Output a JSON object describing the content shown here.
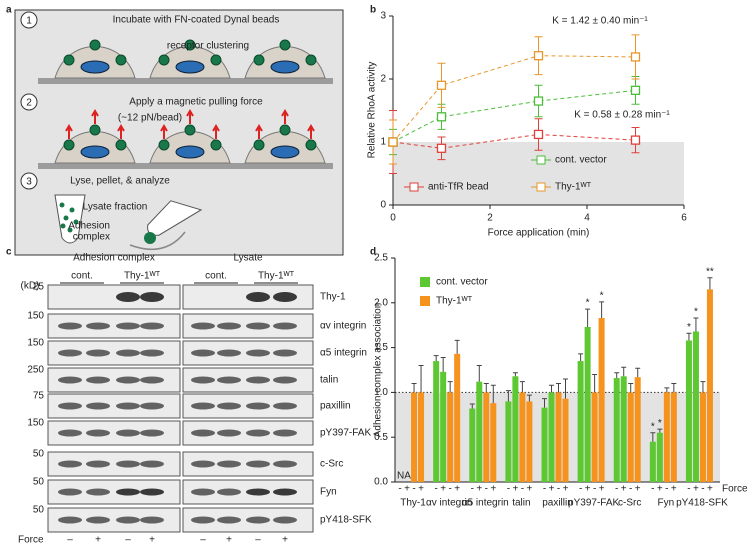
{
  "panel_labels": [
    "a",
    "b",
    "c",
    "d"
  ],
  "panel_a": {
    "steps": [
      {
        "number": "1",
        "text": "Incubate with FN-coated Dynal beads"
      },
      {
        "number": "2",
        "text": "Apply a magnetic pulling force"
      },
      {
        "number": "3",
        "text": "Lyse, pellet, & analyze"
      }
    ],
    "receptor_note": "receptor clustering",
    "force_note": "(~12 pN/bead)",
    "lysate_note": "Lysate fraction",
    "pellet_note": [
      "Adhesion",
      "complex"
    ]
  },
  "panel_c": {
    "groups": [
      "Adhesion complex",
      "Lysate"
    ],
    "conditions": [
      "cont.",
      "Thy-1ᵂᵀ",
      "cont.",
      "Thy-1ᵂᵀ"
    ],
    "unit": "(kD)",
    "rows": [
      {
        "protein": "Thy-1",
        "kd": 25
      },
      {
        "protein": "αv integrin",
        "kd": 150
      },
      {
        "protein": "α5 integrin",
        "kd": 150
      },
      {
        "protein": "talin",
        "kd": 250
      },
      {
        "protein": "paxillin",
        "kd": 75
      },
      {
        "protein": "pY397-FAK",
        "kd": 150
      },
      {
        "protein": "c-Src",
        "kd": 50
      },
      {
        "protein": "Fyn",
        "kd": 50
      },
      {
        "protein": "pY418-SFK",
        "kd": 50
      }
    ],
    "force_label": "Force",
    "force_signs": [
      "–",
      "+",
      "–",
      "+",
      "–",
      "+",
      "–",
      "+"
    ]
  },
  "chart_data": [
    {
      "type": "line",
      "xlabel": "Force application (min)",
      "ylabel": "Relative RhoA activity",
      "x": [
        0,
        1,
        3,
        5
      ],
      "series": [
        {
          "name": "anti-TfR bead",
          "color": "#e0403a",
          "values": [
            1.0,
            0.9,
            1.12,
            1.03
          ],
          "errors": [
            0.5,
            0.18,
            0.25,
            0.2
          ]
        },
        {
          "name": "cont. vector",
          "color": "#4cbd3a",
          "values": [
            1.0,
            1.4,
            1.65,
            1.82
          ],
          "errors": [
            0.2,
            0.2,
            0.25,
            0.22
          ]
        },
        {
          "name": "Thy-1ᵂᵀ",
          "color": "#e8962a",
          "values": [
            1.0,
            1.9,
            2.37,
            2.35
          ],
          "errors": [
            0.35,
            0.35,
            0.3,
            0.35
          ]
        }
      ],
      "annotations": [
        {
          "text": "K = 1.42 ± 0.40 min⁻¹",
          "color": "#e8962a"
        },
        {
          "text": "K = 0.58 ± 0.28 min⁻¹",
          "color": "#4cbd3a"
        }
      ],
      "shaded_range": [
        0,
        1
      ],
      "xlim": [
        0,
        6
      ],
      "xticks": [
        0,
        2,
        4,
        6
      ],
      "ylim": [
        0,
        3
      ],
      "yticks": [
        0,
        1,
        2,
        3
      ]
    },
    {
      "type": "bar",
      "xlabel": "Force",
      "ylabel": "Adhesion complex association",
      "categories": [
        "Thy-1",
        "αv integrin",
        "α5 integrin",
        "talin",
        "paxillin",
        "pY397-FAK",
        "c-Src",
        "Fyn",
        "pY418-SFK"
      ],
      "force_signs": [
        "-",
        "+"
      ],
      "na_label": "NA",
      "series": [
        {
          "name": "cont. vector",
          "color": "#5ec832",
          "values": [
            null,
            1.35,
            0.82,
            0.9,
            0.83,
            1.35,
            1.16,
            0.45,
            1.58
          ],
          "errors": [
            null,
            0.06,
            0.05,
            0.12,
            0.1,
            0.08,
            0.06,
            0.1,
            0.08
          ],
          "values_force": [
            null,
            1.23,
            1.12,
            1.18,
            1.0,
            1.73,
            1.18,
            0.55,
            1.68
          ],
          "errors_force": [
            null,
            0.16,
            0.18,
            0.04,
            0.08,
            0.2,
            0.1,
            0.04,
            0.15
          ],
          "significance": [
            null,
            null,
            null,
            null,
            null,
            null,
            null,
            "*",
            "*"
          ],
          "significance_force": [
            null,
            null,
            null,
            null,
            null,
            "*",
            null,
            "*",
            "*"
          ]
        },
        {
          "name": "Thy-1ᵂᵀ",
          "color": "#f5931e",
          "values": [
            1.0,
            1.0,
            1.0,
            1.0,
            1.0,
            1.0,
            1.0,
            1.0,
            1.0
          ],
          "errors": [
            0.1,
            0.12,
            0.1,
            0.12,
            0.1,
            0.2,
            0.1,
            0.05,
            0.12
          ],
          "values_force": [
            1.0,
            1.43,
            0.88,
            0.9,
            0.93,
            1.83,
            1.17,
            1.0,
            2.15
          ],
          "errors_force": [
            0.3,
            0.15,
            0.2,
            0.07,
            0.22,
            0.18,
            0.1,
            0.1,
            0.13
          ],
          "significance": [
            null,
            null,
            null,
            null,
            null,
            null,
            null,
            null,
            null
          ],
          "significance_force": [
            null,
            null,
            null,
            null,
            null,
            "*",
            null,
            null,
            "**"
          ]
        }
      ],
      "reference_line": 1,
      "shaded_range": [
        0,
        1
      ],
      "ylim": [
        0,
        2.5
      ],
      "yticks": [
        {
          "value": 0,
          "label": "0.0"
        },
        {
          "value": 0.5,
          "label": "0.5"
        },
        {
          "value": 1,
          "label": "1.0"
        },
        {
          "value": 1.5,
          "label": "1.5"
        },
        {
          "value": 2,
          "label": "2.0"
        },
        {
          "value": 2.5,
          "label": "2.5"
        }
      ]
    }
  ]
}
